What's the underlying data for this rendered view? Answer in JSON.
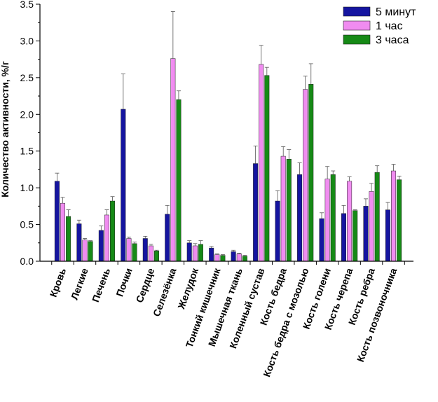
{
  "chart_data": {
    "type": "bar",
    "title": "",
    "xlabel": "",
    "ylabel": "Количество активности, %/г",
    "ylim": [
      0,
      3.5
    ],
    "yticks": [
      0.0,
      0.5,
      1.0,
      1.5,
      2.0,
      2.5,
      3.0,
      3.5
    ],
    "ytick_labels": [
      "0.0",
      "0.5",
      "1.0",
      "1.5",
      "2.0",
      "2.5",
      "3.0",
      "3.5"
    ],
    "legend_position": "top-right",
    "error_bars": "upper only",
    "categories": [
      "Кровь",
      "Легкие",
      "Печень",
      "Почки",
      "Сердце",
      "Селезёнка",
      "Желудок",
      "Тонкий кишечник",
      "Мышечная ткань",
      "Коленный сустав",
      "Кость бедра",
      "Кость бедра с мозолью",
      "Кость голени",
      "Кость черепа",
      "Кость ребра",
      "Кость позвоночника"
    ],
    "series": [
      {
        "name": "5 минут",
        "color": "#1515a0",
        "values": [
          1.09,
          0.51,
          0.42,
          2.07,
          0.31,
          0.64,
          0.25,
          0.18,
          0.13,
          1.33,
          0.82,
          1.18,
          0.58,
          0.65,
          0.75,
          0.7
        ],
        "errors": [
          0.11,
          0.05,
          0.06,
          0.48,
          0.03,
          0.12,
          0.03,
          0.02,
          0.02,
          0.24,
          0.14,
          0.16,
          0.08,
          0.11,
          0.1,
          0.1
        ]
      },
      {
        "name": "1 час",
        "color": "#f08cf0",
        "values": [
          0.79,
          0.29,
          0.63,
          0.31,
          0.21,
          2.76,
          0.21,
          0.09,
          0.1,
          2.68,
          1.43,
          2.34,
          1.12,
          1.09,
          0.95,
          1.23
        ],
        "errors": [
          0.08,
          0.02,
          0.07,
          0.02,
          0.02,
          0.64,
          0.03,
          0.01,
          0.01,
          0.26,
          0.13,
          0.18,
          0.17,
          0.06,
          0.11,
          0.09
        ]
      },
      {
        "name": "3 часа",
        "color": "#168a16",
        "values": [
          0.61,
          0.27,
          0.82,
          0.24,
          0.14,
          2.2,
          0.23,
          0.08,
          0.07,
          2.53,
          1.39,
          2.41,
          1.18,
          0.69,
          1.21,
          1.11
        ],
        "errors": [
          0.09,
          0.01,
          0.06,
          0.02,
          0.01,
          0.12,
          0.05,
          0.01,
          0.01,
          0.11,
          0.13,
          0.28,
          0.05,
          0.01,
          0.09,
          0.05
        ]
      }
    ]
  }
}
